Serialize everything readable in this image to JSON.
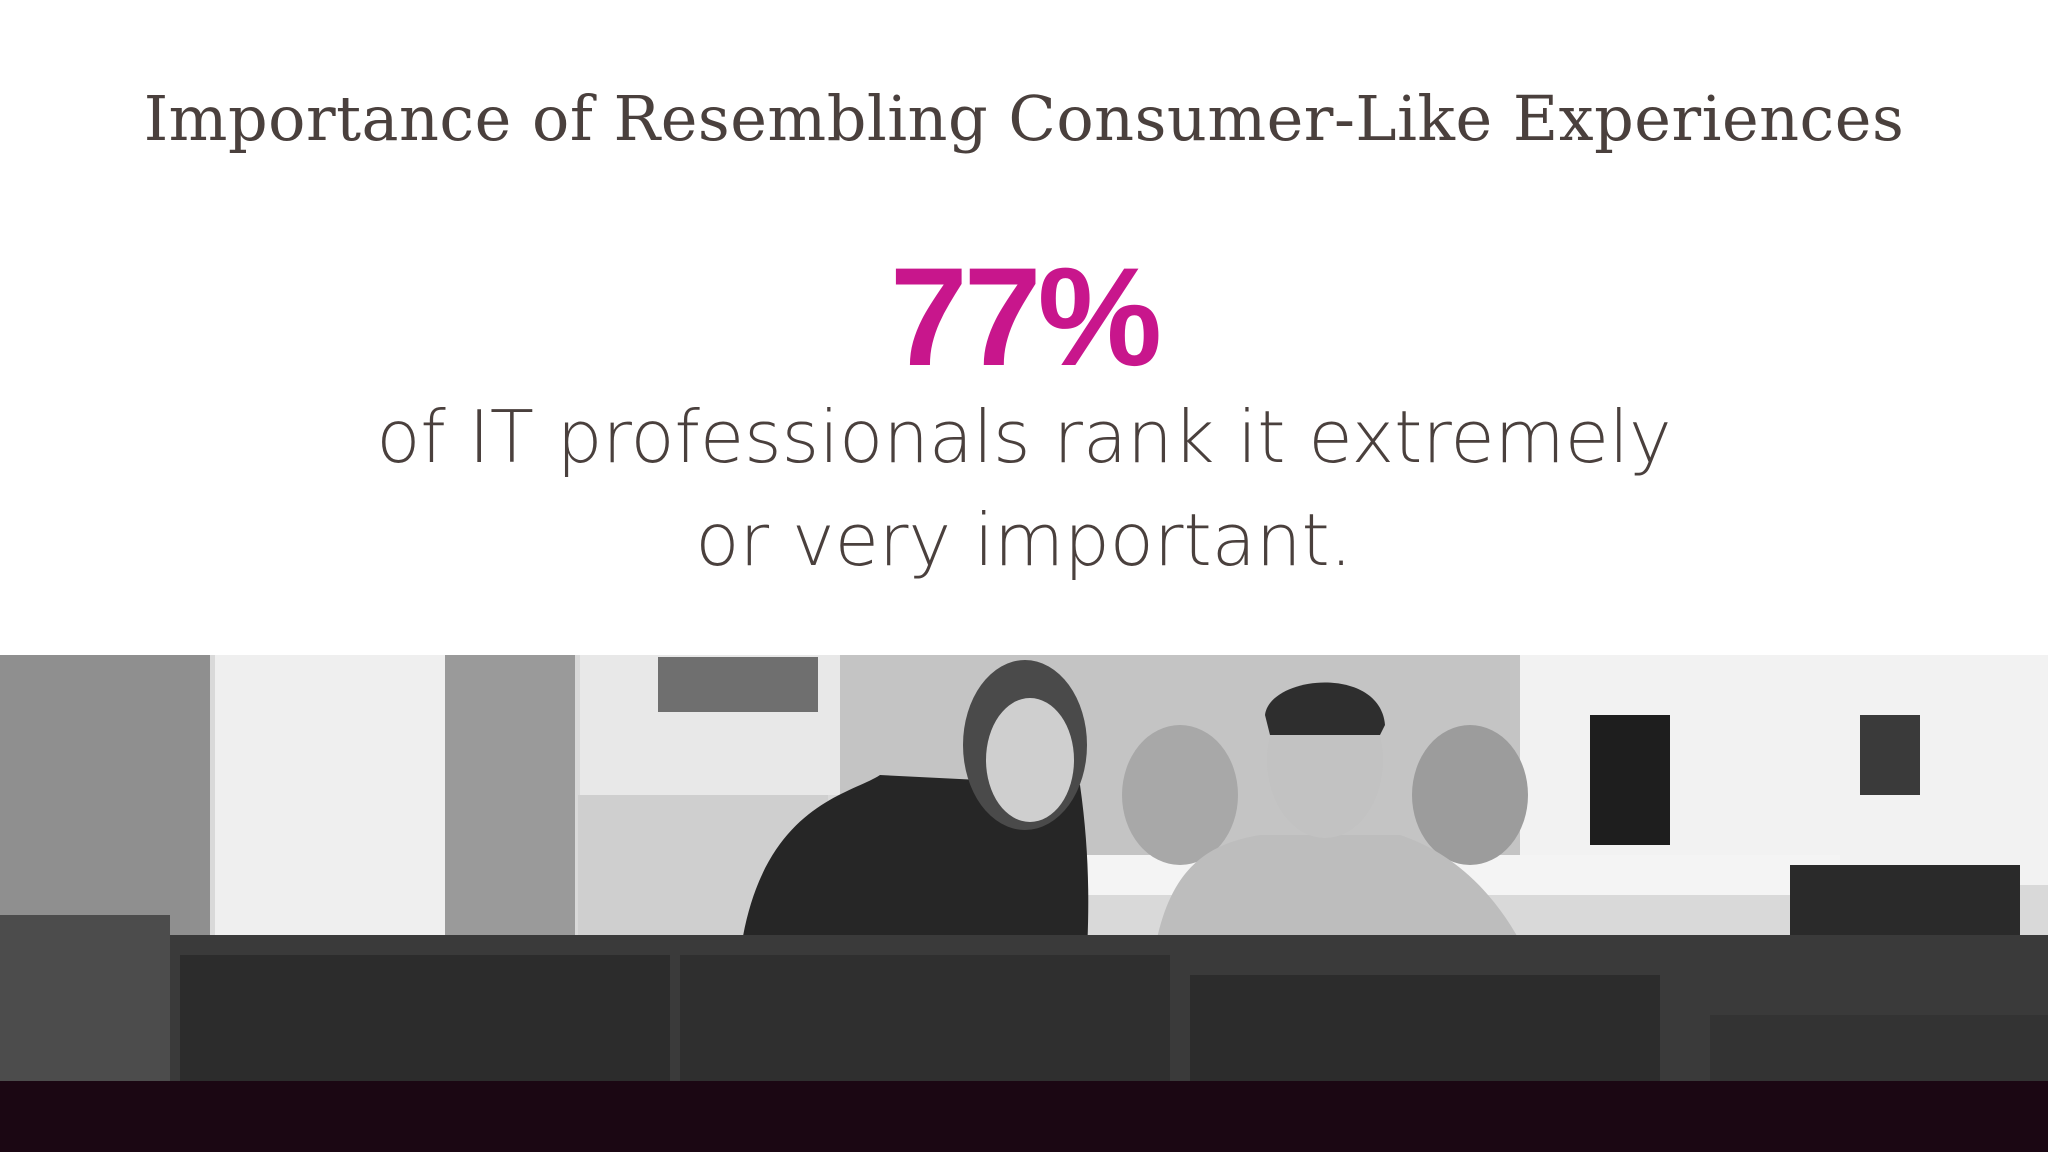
{
  "slide": {
    "title": "Importance of Resembling Consumer-Like Experiences",
    "stat": "77%",
    "description": [
      "of IT professionals rank it extremely",
      "or very important."
    ]
  }
}
